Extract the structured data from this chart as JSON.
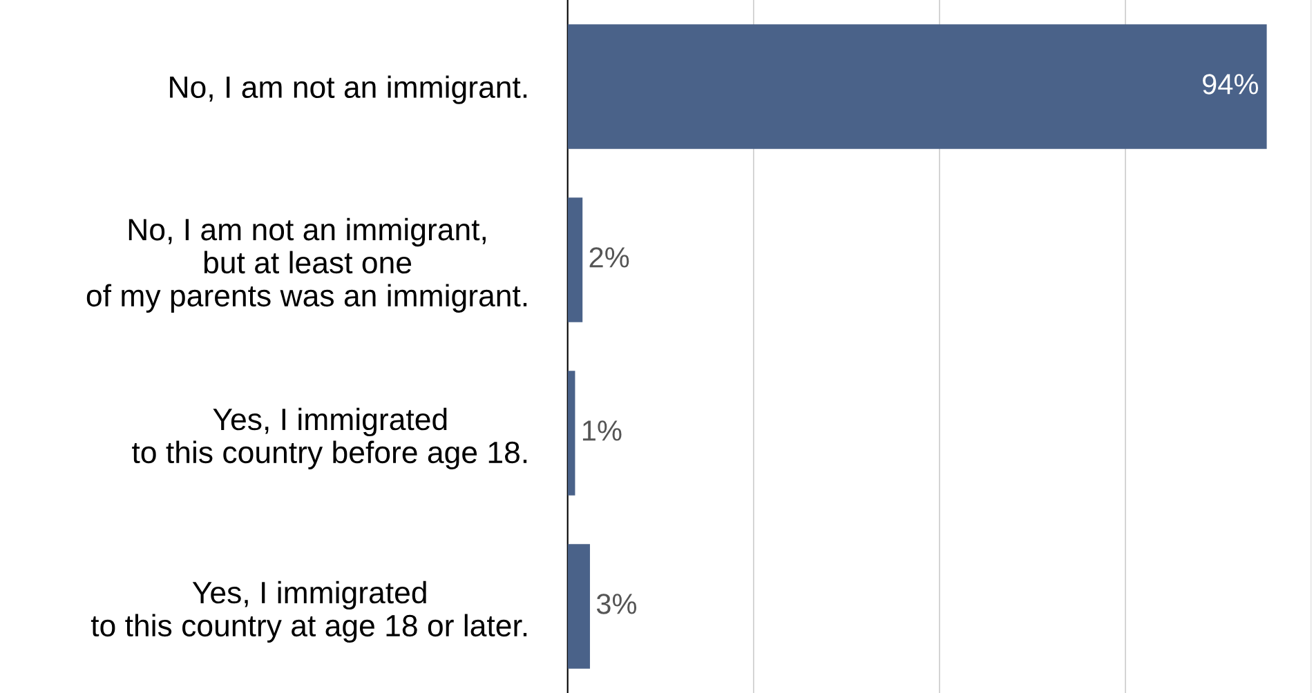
{
  "chart_data": {
    "type": "bar",
    "orientation": "horizontal",
    "categories": [
      "No, I am not an immigrant.",
      "No, I am not an immigrant,\nbut at least one\nof my parents was an immigrant.",
      "Yes, I immigrated\nto this country before age 18.",
      "Yes, I immigrated\nto this country at age 18 or later."
    ],
    "values": [
      94,
      2,
      1,
      3
    ],
    "value_labels": [
      "94%",
      "2%",
      "1%",
      "3%"
    ],
    "color": "#4a6289",
    "xlim": [
      0,
      100
    ],
    "xticks": [
      {
        "value": 0,
        "label": null
      },
      {
        "value": 25,
        "label": null
      },
      {
        "value": 50,
        "label": null
      },
      {
        "value": 75,
        "label": null
      },
      {
        "value": 100,
        "label": null
      }
    ],
    "grid": "x",
    "tick_labels": "y"
  }
}
